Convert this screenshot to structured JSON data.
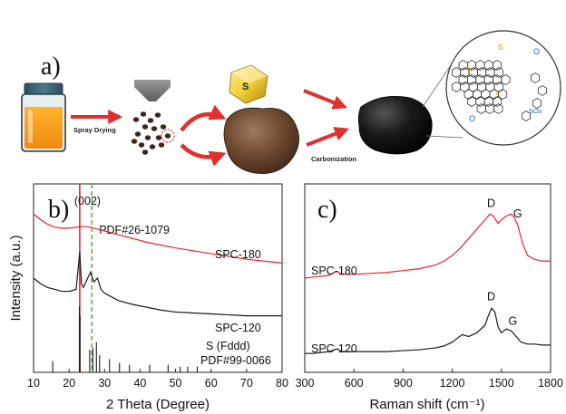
{
  "panel_a": {
    "letter": "a)",
    "sulfur_label": "S",
    "step1_label": "Spray Drying",
    "step2_label": "Carbonization",
    "molecule_labels": [
      "S",
      "S",
      "S",
      "O",
      "O",
      "SOx"
    ]
  },
  "chart_data": [
    {
      "id": "xrd",
      "letter": "b)",
      "type": "line",
      "title": "",
      "xlabel": "2 Theta (Degree)",
      "ylabel": "Intensity (a.u.)",
      "xlim": [
        10,
        80
      ],
      "xticks": [
        10,
        20,
        30,
        40,
        50,
        60,
        70,
        80
      ],
      "grid": false,
      "series": [
        {
          "label": "SPC-180",
          "color": "#e8242a",
          "x": [
            10,
            12,
            14,
            16,
            18,
            20,
            22,
            24,
            26,
            28,
            30,
            34,
            38,
            42,
            46,
            50,
            55,
            60,
            65,
            70,
            75,
            80
          ],
          "y": [
            0.84,
            0.81,
            0.785,
            0.77,
            0.765,
            0.765,
            0.77,
            0.775,
            0.77,
            0.76,
            0.75,
            0.73,
            0.71,
            0.69,
            0.675,
            0.66,
            0.645,
            0.63,
            0.615,
            0.6,
            0.59,
            0.58
          ]
        },
        {
          "label": "SPC-120",
          "color": "#1a1a1a",
          "x": [
            10,
            12,
            14,
            16,
            18,
            20,
            22,
            23,
            23.5,
            24,
            25,
            26,
            27,
            28,
            29,
            30,
            32,
            34,
            38,
            42,
            46,
            50,
            55,
            60,
            65,
            70,
            75,
            80
          ],
          "y": [
            0.5,
            0.47,
            0.45,
            0.44,
            0.43,
            0.43,
            0.44,
            0.64,
            0.47,
            0.45,
            0.49,
            0.53,
            0.48,
            0.5,
            0.44,
            0.42,
            0.4,
            0.38,
            0.36,
            0.345,
            0.33,
            0.32,
            0.315,
            0.31,
            0.305,
            0.3,
            0.3,
            0.3
          ]
        }
      ],
      "reference_sticks": {
        "label_line1": "S (Fddd)",
        "label_line2": "PDF#99-0066",
        "color": "#1a1a1a",
        "x": [
          15.4,
          22.9,
          23.1,
          25.8,
          26.7,
          27.7,
          28.6,
          31.4,
          34.2,
          37.0,
          42.7,
          47.9,
          51.3,
          53.4,
          56.1
        ],
        "h": [
          0.06,
          0.35,
          0.3,
          0.12,
          0.13,
          0.16,
          0.09,
          0.07,
          0.05,
          0.04,
          0.04,
          0.04,
          0.03,
          0.03,
          0.03
        ]
      },
      "annotations": [
        {
          "text": "(002)",
          "x": 23.0,
          "color": "#e8242a",
          "style": "solid"
        },
        {
          "text": "PDF#26-1079",
          "x": 26.4,
          "color": "#66b34a",
          "style": "dashed"
        }
      ]
    },
    {
      "id": "raman",
      "letter": "c)",
      "type": "line",
      "title": "",
      "xlabel": "Raman shift (cm⁻¹)",
      "ylabel": "",
      "xlim": [
        300,
        1800
      ],
      "xticks": [
        300,
        600,
        900,
        1200,
        1500,
        1800
      ],
      "grid": false,
      "series": [
        {
          "label": "SPC-180",
          "color": "#e8242a",
          "peak_labels": {
            "D": 1440,
            "G": 1600
          },
          "x": [
            300,
            350,
            400,
            450,
            480,
            500,
            520,
            600,
            700,
            800,
            900,
            1000,
            1100,
            1150,
            1200,
            1250,
            1300,
            1350,
            1400,
            1430,
            1450,
            1480,
            1500,
            1530,
            1560,
            1580,
            1600,
            1630,
            1660,
            1700,
            1750,
            1800
          ],
          "y": [
            0.5,
            0.505,
            0.51,
            0.515,
            0.53,
            0.535,
            0.52,
            0.52,
            0.525,
            0.53,
            0.54,
            0.55,
            0.57,
            0.59,
            0.62,
            0.66,
            0.71,
            0.76,
            0.81,
            0.84,
            0.83,
            0.79,
            0.81,
            0.83,
            0.84,
            0.82,
            0.78,
            0.68,
            0.62,
            0.6,
            0.59,
            0.59
          ]
        },
        {
          "label": "SPC-120",
          "color": "#1a1a1a",
          "peak_labels": {
            "D": 1440,
            "G": 1570
          },
          "x": [
            300,
            350,
            400,
            450,
            480,
            500,
            520,
            600,
            700,
            800,
            900,
            1000,
            1100,
            1150,
            1200,
            1230,
            1260,
            1300,
            1350,
            1400,
            1420,
            1440,
            1460,
            1480,
            1500,
            1530,
            1560,
            1590,
            1620,
            1660,
            1700,
            1750,
            1800
          ],
          "y": [
            0.1,
            0.1,
            0.105,
            0.11,
            0.12,
            0.125,
            0.11,
            0.11,
            0.11,
            0.11,
            0.115,
            0.12,
            0.13,
            0.14,
            0.16,
            0.18,
            0.2,
            0.19,
            0.21,
            0.25,
            0.3,
            0.34,
            0.32,
            0.24,
            0.21,
            0.23,
            0.22,
            0.19,
            0.16,
            0.15,
            0.15,
            0.145,
            0.145
          ]
        }
      ]
    }
  ]
}
